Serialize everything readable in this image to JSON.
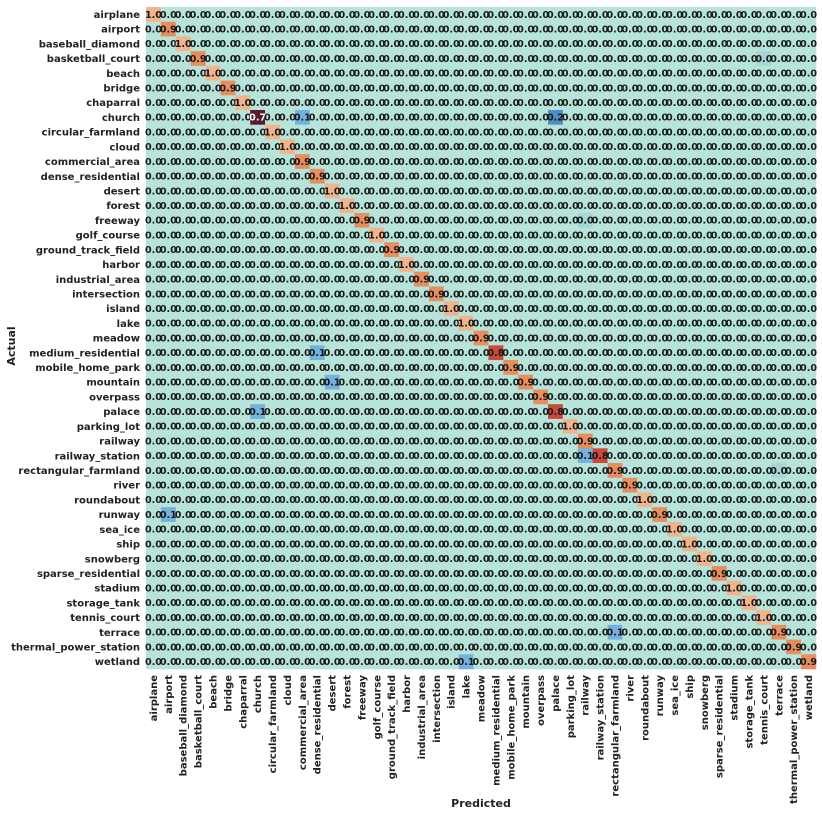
{
  "chart_data": {
    "type": "heatmap",
    "title": "",
    "xlabel": "Predicted",
    "ylabel": "Actual",
    "value_format": "0.0",
    "categories": [
      "airplane",
      "airport",
      "baseball_diamond",
      "basketball_court",
      "beach",
      "bridge",
      "chaparral",
      "church",
      "circular_farmland",
      "cloud",
      "commercial_area",
      "dense_residential",
      "desert",
      "forest",
      "freeway",
      "golf_course",
      "ground_track_field",
      "harbor",
      "industrial_area",
      "intersection",
      "island",
      "lake",
      "meadow",
      "medium_residential",
      "mobile_home_park",
      "mountain",
      "overpass",
      "palace",
      "parking_lot",
      "railway",
      "railway_station",
      "rectangular_farmland",
      "river",
      "roundabout",
      "runway",
      "sea_ice",
      "ship",
      "snowberg",
      "sparse_residential",
      "stadium",
      "storage_tank",
      "tennis_court",
      "terrace",
      "thermal_power_station",
      "wetland"
    ],
    "diagonal": [
      1.0,
      0.9,
      1.0,
      0.9,
      1.0,
      0.9,
      1.0,
      0.7,
      1.0,
      1.0,
      0.9,
      0.9,
      1.0,
      1.0,
      0.9,
      1.0,
      0.9,
      1.0,
      0.9,
      0.9,
      1.0,
      1.0,
      0.9,
      0.8,
      0.9,
      0.9,
      0.9,
      0.8,
      1.0,
      0.9,
      0.8,
      0.9,
      0.9,
      1.0,
      0.9,
      1.0,
      1.0,
      1.0,
      0.9,
      1.0,
      1.0,
      1.0,
      0.9,
      0.9,
      0.9
    ],
    "off_diagonal": [
      {
        "actual": "church",
        "predicted": "commercial_area",
        "value": 0.1
      },
      {
        "actual": "church",
        "predicted": "palace",
        "value": 0.2
      },
      {
        "actual": "medium_residential",
        "predicted": "dense_residential",
        "value": 0.1
      },
      {
        "actual": "mountain",
        "predicted": "desert",
        "value": 0.1
      },
      {
        "actual": "palace",
        "predicted": "church",
        "value": 0.1
      },
      {
        "actual": "railway_station",
        "predicted": "railway",
        "value": 0.1
      },
      {
        "actual": "runway",
        "predicted": "airport",
        "value": 0.1
      },
      {
        "actual": "terrace",
        "predicted": "rectangular_farmland",
        "value": 0.1
      },
      {
        "actual": "wetland",
        "predicted": "lake",
        "value": 0.1
      }
    ],
    "faint_cells": [
      {
        "actual": "basketball_court",
        "predicted": "tennis_court",
        "value": 0.0
      },
      {
        "actual": "freeway",
        "predicted": "railway",
        "value": 0.0
      },
      {
        "actual": "rectangular_farmland",
        "predicted": "terrace",
        "value": 0.0
      }
    ],
    "colormap": {
      "background": "#b7e4da",
      "faint": "#a7d6d4",
      "low": "#74b1dc",
      "mid": "#4d8ec4",
      "high_0_7": "#5b1a2c",
      "high_0_8": "#c94a38",
      "high_0_9": "#e88d5d",
      "high_1_0": "#f1b58e"
    },
    "grid": false,
    "legend": "none"
  }
}
